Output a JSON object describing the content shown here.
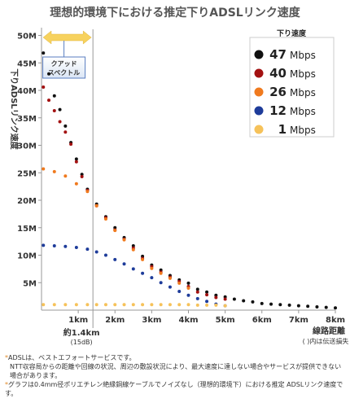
{
  "chart_data": {
    "type": "scatter",
    "title": "理想的環境下における推定下りADSLリンク速度",
    "ylabel": "下りADSLリンク速度",
    "xlabel": "線路距離",
    "xlabel_note": "( )内は伝送損失",
    "xlim": [
      0,
      8
    ],
    "ylim": [
      0,
      52
    ],
    "x_ticks": [
      1,
      2,
      3,
      4,
      5,
      6,
      7,
      8
    ],
    "x_tick_labels": [
      "1km",
      "2km",
      "3km",
      "4km",
      "5km",
      "6km",
      "7km",
      "8km"
    ],
    "y_ticks": [
      5,
      10,
      15,
      20,
      25,
      30,
      35,
      40,
      45,
      50
    ],
    "y_tick_labels": [
      "5M",
      "10M",
      "15M",
      "20M",
      "25M",
      "30M",
      "35M",
      "40M",
      "45M",
      "50M"
    ],
    "legend_title": "下り速度",
    "legend_position": "top-right",
    "grid": false,
    "series": [
      {
        "name": "47",
        "unit": "Mbps",
        "color": "#111111",
        "x": [
          0.05,
          0.2,
          0.35,
          0.5,
          0.65,
          0.8,
          0.95,
          1.1,
          1.25,
          1.5,
          1.75,
          2.0,
          2.25,
          2.5,
          2.75,
          3.0,
          3.25,
          3.5,
          3.75,
          4.0,
          4.25,
          4.5,
          4.75,
          5.0,
          5.25,
          5.5,
          5.75,
          6.0,
          6.25,
          6.5,
          6.75,
          7.0,
          7.25,
          7.5,
          7.75,
          8.0
        ],
        "y": [
          46.8,
          43.0,
          39.0,
          36.5,
          33.5,
          30.5,
          27.5,
          24.7,
          22.0,
          19.3,
          17.0,
          15.0,
          13.2,
          11.7,
          9.8,
          8.2,
          7.3,
          6.3,
          5.5,
          4.9,
          3.8,
          3.3,
          2.7,
          2.4,
          2.0,
          1.7,
          1.5,
          1.2,
          1.1,
          1.0,
          0.9,
          0.8,
          0.7,
          0.6,
          0.5,
          0.4
        ]
      },
      {
        "name": "40",
        "unit": "Mbps",
        "color": "#a31111",
        "x": [
          0.05,
          0.2,
          0.35,
          0.5,
          0.65,
          0.8,
          0.95,
          1.1,
          1.25,
          1.5,
          1.75,
          2.0,
          2.25,
          2.5,
          2.75,
          3.0,
          3.25,
          3.5,
          3.75,
          4.0,
          4.25,
          4.5,
          4.75,
          5.0
        ],
        "y": [
          40.6,
          38.2,
          36.3,
          34.3,
          32.4,
          30.2,
          27.0,
          24.3,
          21.8,
          19.0,
          16.8,
          14.6,
          12.9,
          11.3,
          9.4,
          7.9,
          6.9,
          6.0,
          5.2,
          4.3,
          3.3,
          2.8,
          2.3,
          2.0
        ]
      },
      {
        "name": "26",
        "unit": "Mbps",
        "color": "#f07a1e",
        "x": [
          0.05,
          0.35,
          0.65,
          0.95,
          1.25,
          1.5,
          1.75,
          2.0,
          2.25,
          2.5,
          2.75,
          3.0,
          3.25,
          3.5,
          3.75,
          4.0
        ],
        "y": [
          25.7,
          25.2,
          24.4,
          23.0,
          21.6,
          19.0,
          16.6,
          14.5,
          12.8,
          11.0,
          9.2,
          7.6,
          6.7,
          5.8,
          4.9,
          4.0
        ]
      },
      {
        "name": "12",
        "unit": "Mbps",
        "color": "#1e3c9a",
        "x": [
          0.05,
          0.35,
          0.65,
          0.95,
          1.25,
          1.5,
          1.75,
          2.0,
          2.25,
          2.5,
          2.75,
          3.0,
          3.25,
          3.5,
          3.75,
          4.0,
          4.25,
          4.5,
          4.75,
          5.0
        ],
        "y": [
          11.8,
          11.7,
          11.6,
          11.4,
          11.1,
          10.6,
          10.0,
          9.2,
          8.4,
          7.5,
          6.7,
          5.9,
          5.0,
          4.2,
          3.4,
          2.7,
          2.1,
          1.6,
          1.1,
          0.8
        ]
      },
      {
        "name": "1",
        "unit": "Mbps",
        "color": "#f6c25a",
        "x": [
          0.05,
          0.35,
          0.65,
          0.95,
          1.25,
          1.5,
          1.75,
          2.0,
          2.25,
          2.5,
          2.75,
          3.0,
          3.25,
          3.5,
          3.75,
          4.0,
          4.25,
          4.5,
          4.75,
          5.0
        ],
        "y": [
          1.0,
          1.0,
          1.0,
          1.0,
          1.0,
          1.0,
          1.0,
          1.0,
          1.0,
          1.0,
          1.0,
          1.0,
          1.0,
          1.0,
          1.0,
          1.0,
          0.9,
          0.9,
          0.9,
          0.8
        ]
      }
    ],
    "annotations": {
      "quad_label_line1": "クアッド",
      "quad_label_line2": "スペクトル",
      "quad_range": [
        0,
        1.4
      ],
      "marker_x": 1.4,
      "marker_label": "約1.4km",
      "marker_sub": "(15dB)"
    },
    "colors": {
      "arrow": "#f7d25e",
      "box_border": "#5a7ec0",
      "legend_border": "#cccccc"
    }
  },
  "notes": [
    {
      "mark": "*",
      "text": "ADSLは、ベストエフォートサービスです。"
    },
    {
      "mark": "",
      "text": "NTT収容局からの距離や回線の状況、周辺の敷設状況により、最大速度に達しない場合やサービスが提供できない場合があります。"
    },
    {
      "mark": "*",
      "text": "グラフは0.4mm径ポリエチレン絶縁銅線ケーブルでノイズなし（理想的環境下）における推定 ADSLリンク速度です。"
    }
  ]
}
